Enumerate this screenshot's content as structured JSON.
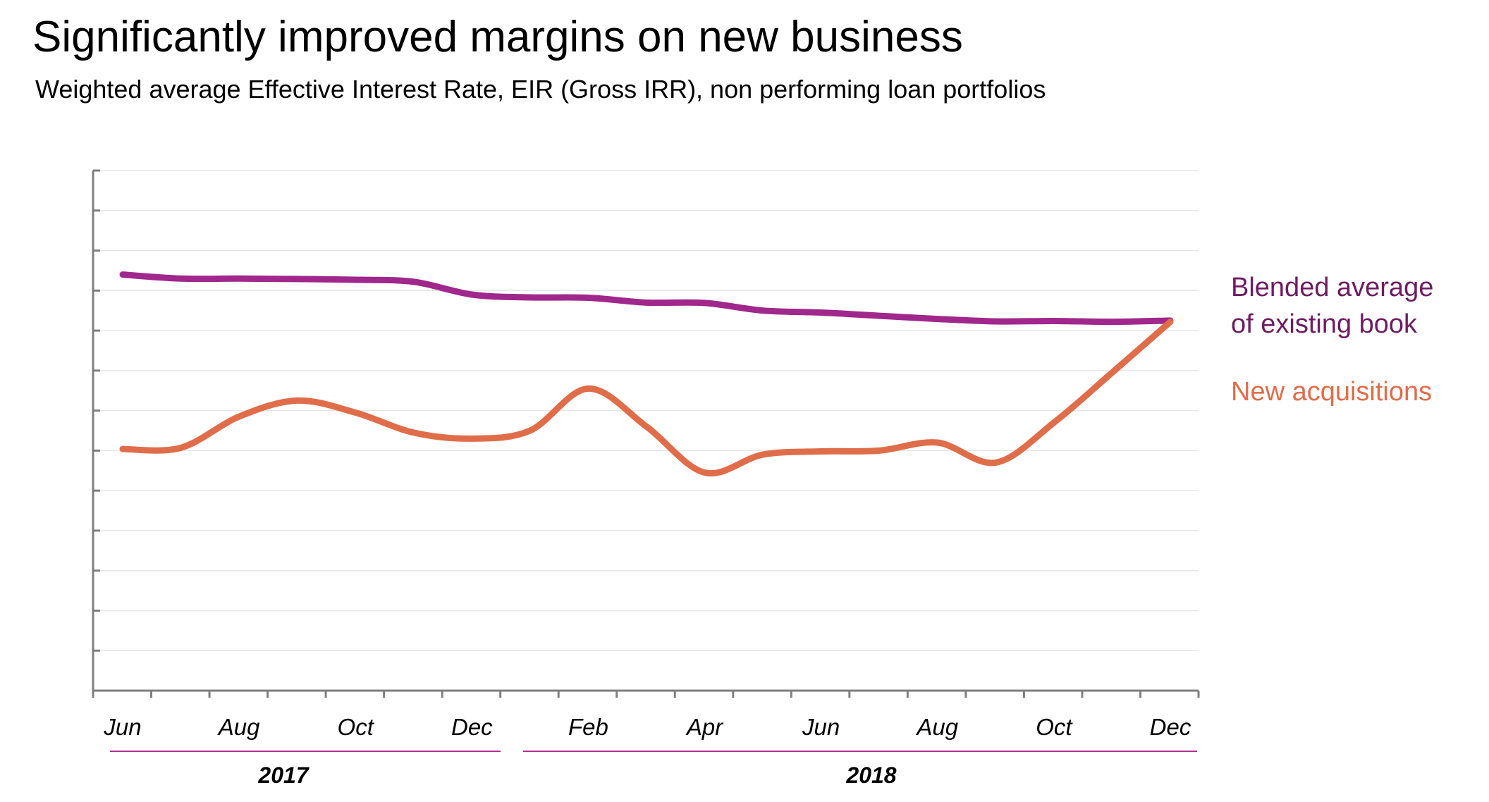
{
  "title": "Significantly improved margins on new business",
  "subtitle": "Weighted average Effective Interest Rate, EIR (Gross IRR), non performing loan portfolios",
  "colors": {
    "blended": "#a0278c",
    "new": "#e06d4a",
    "blended_text": "#6e1c61",
    "year_line": "#b0308f"
  },
  "chart_data": {
    "type": "line",
    "x": [
      "Jun 2017",
      "Jul 2017",
      "Aug 2017",
      "Sep 2017",
      "Oct 2017",
      "Nov 2017",
      "Dec 2017",
      "Jan 2018",
      "Feb 2018",
      "Mar 2018",
      "Apr 2018",
      "May 2018",
      "Jun 2018",
      "Jul 2018",
      "Aug 2018",
      "Sep 2018",
      "Oct 2018",
      "Nov 2018",
      "Dec 2018"
    ],
    "tick_labels": [
      "Jun",
      "Aug",
      "Oct",
      "Dec",
      "Feb",
      "Apr",
      "Jun",
      "Aug",
      "Oct",
      "Dec"
    ],
    "year_labels": [
      "2017",
      "2018"
    ],
    "series": [
      {
        "name": "Blended average of existing book",
        "values": [
          10.4,
          10.3,
          10.3,
          10.29,
          10.27,
          10.22,
          9.9,
          9.83,
          9.82,
          9.7,
          9.69,
          9.5,
          9.45,
          9.37,
          9.29,
          9.23,
          9.24,
          9.22,
          9.25
        ]
      },
      {
        "name": "New acquisitions",
        "values": [
          6.04,
          6.07,
          6.85,
          7.25,
          6.95,
          6.45,
          6.3,
          6.5,
          7.55,
          6.6,
          5.45,
          5.9,
          5.98,
          6.0,
          6.2,
          5.7,
          6.7,
          7.95,
          9.22
        ]
      }
    ],
    "ylim": [
      0,
      13
    ],
    "y_ticks": 13,
    "grid": true
  }
}
